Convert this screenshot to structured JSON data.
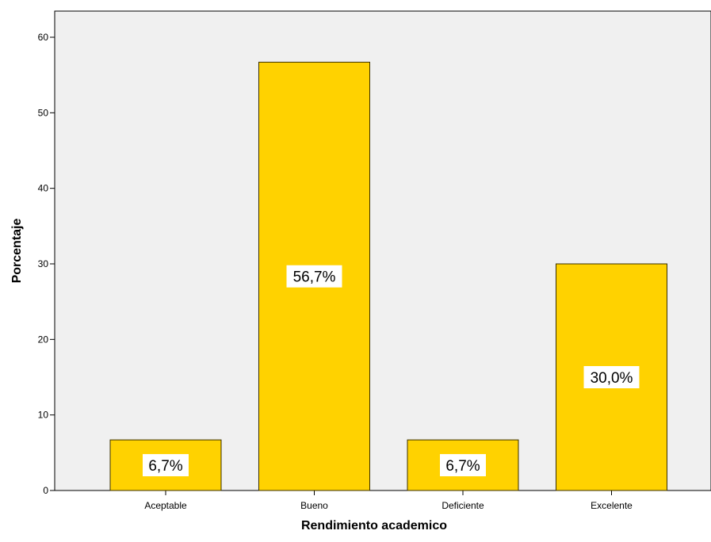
{
  "chart_data": {
    "type": "bar",
    "categories": [
      "Aceptable",
      "Bueno",
      "Deficiente",
      "Excelente"
    ],
    "values": [
      6.7,
      56.7,
      6.7,
      30.0
    ],
    "data_labels": [
      "6,7%",
      "56,7%",
      "6,7%",
      "30,0%"
    ],
    "title": "",
    "xlabel": "Rendimiento academico",
    "ylabel": "Porcentaje",
    "ylim": [
      0,
      60
    ],
    "yticks": [
      0,
      10,
      20,
      30,
      40,
      50,
      60
    ],
    "grid": false,
    "legend": "none",
    "colors": {
      "bar_fill": "#FFD200",
      "bar_stroke": "#3a2f00",
      "plot_background": "#F0F0F0",
      "label_background": "#FFFFFF"
    }
  }
}
